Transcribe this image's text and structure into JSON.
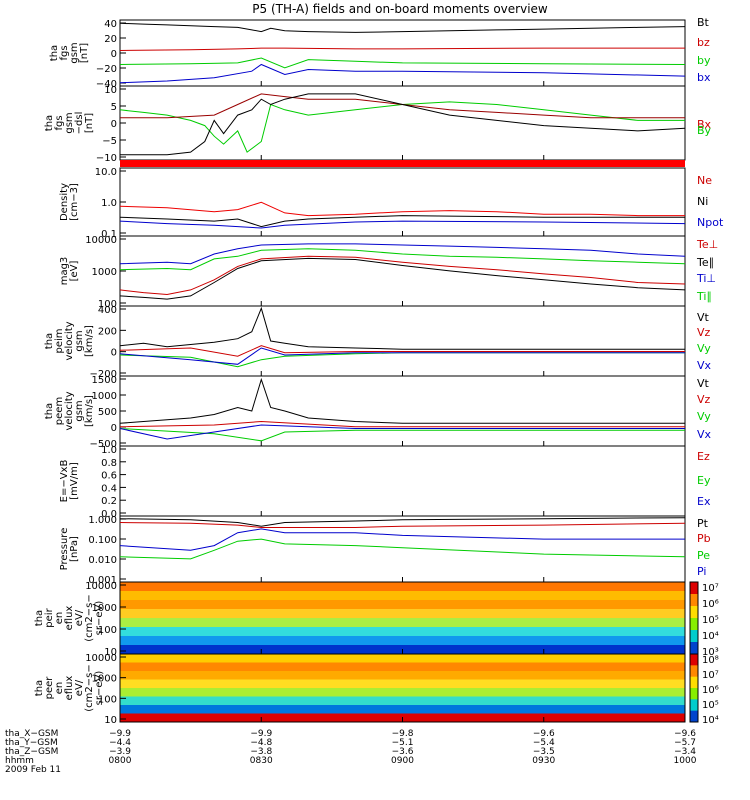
{
  "title": "P5 (TH-A) fields and on-board moments overview",
  "chart_data": [
    {
      "type": "line",
      "panel": "fgs-gsm",
      "ylabel": [
        "tha",
        "fgs",
        "gsm",
        "[nT]"
      ],
      "ylim": [
        -40,
        40
      ],
      "yticks": [
        "40",
        "20",
        "0",
        "−20",
        "−40"
      ],
      "legend": [
        "Bt",
        "bz",
        "by",
        "bx"
      ],
      "legend_colors": [
        "#000000",
        "#cc0000",
        "#00cc00",
        "#0000cc"
      ],
      "series": [
        {
          "name": "Bt",
          "color": "#000000",
          "x": [
            800,
            805,
            810,
            815,
            820,
            825,
            828,
            830,
            832,
            835,
            840,
            850,
            900,
            910,
            920,
            930,
            940,
            950,
            1000
          ],
          "y": [
            36,
            35,
            34,
            33,
            32,
            31,
            28,
            26,
            30,
            27,
            26,
            25,
            26,
            27,
            28,
            29,
            30,
            31,
            32
          ]
        },
        {
          "name": "bz",
          "color": "#cc0000",
          "x": [
            800,
            815,
            825,
            830,
            835,
            850,
            900,
            930,
            1000
          ],
          "y": [
            3,
            4,
            5,
            6,
            6,
            5,
            5,
            6,
            6
          ]
        },
        {
          "name": "by",
          "color": "#00cc00",
          "x": [
            800,
            815,
            825,
            830,
            835,
            840,
            850,
            900,
            930,
            1000
          ],
          "y": [
            -14,
            -13,
            -12,
            -6,
            -18,
            -8,
            -10,
            -12,
            -13,
            -14
          ]
        },
        {
          "name": "bx",
          "color": "#0000cc",
          "x": [
            800,
            810,
            820,
            828,
            830,
            835,
            840,
            850,
            900,
            930,
            1000
          ],
          "y": [
            -36,
            -34,
            -30,
            -22,
            -14,
            -26,
            -20,
            -22,
            -22,
            -24,
            -28
          ]
        }
      ]
    },
    {
      "type": "line",
      "panel": "fgs-gse-dsl",
      "ylabel": [
        "tha",
        "fgs",
        "gsm",
        "−dsl",
        "[nT]"
      ],
      "ylim": [
        -13,
        15
      ],
      "yticks": [
        "10",
        "5",
        "0",
        "−5",
        "−10"
      ],
      "legend": [
        "Bx",
        "By"
      ],
      "legend_colors": [
        "#cc0000",
        "#00cc00"
      ],
      "series": [
        {
          "name": "green",
          "color": "#00cc00",
          "x": [
            800,
            805,
            810,
            815,
            818,
            820,
            822,
            825,
            827,
            830,
            832,
            835,
            840,
            850,
            900,
            910,
            920,
            930,
            940,
            950,
            1000
          ],
          "y": [
            6,
            5,
            4,
            2,
            0,
            -4,
            -7,
            -2,
            -10,
            -6,
            8,
            6,
            4,
            6,
            8,
            9,
            8,
            6,
            4,
            2,
            2
          ]
        },
        {
          "name": "red",
          "color": "#990000",
          "x": [
            800,
            810,
            820,
            825,
            830,
            835,
            840,
            850,
            900,
            910,
            920,
            930,
            940,
            950,
            1000
          ],
          "y": [
            3,
            3,
            4,
            8,
            12,
            11,
            10,
            10,
            8,
            6,
            5,
            4,
            3,
            3,
            3
          ]
        },
        {
          "name": "black",
          "color": "#000000",
          "x": [
            800,
            805,
            810,
            815,
            818,
            820,
            822,
            825,
            828,
            830,
            832,
            835,
            840,
            850,
            900,
            910,
            920,
            930,
            940,
            950,
            1000
          ],
          "y": [
            -11,
            -11,
            -11,
            -10,
            -6,
            2,
            -3,
            4,
            6,
            10,
            8,
            10,
            12,
            12,
            8,
            4,
            2,
            0,
            -1,
            -2,
            -1
          ]
        }
      ]
    },
    {
      "type": "line",
      "panel": "density",
      "ylabel": [
        "Density",
        "[cm−3]"
      ],
      "ylog": true,
      "ylim": [
        0.1,
        15
      ],
      "yticks": [
        "10.0",
        "1.0",
        "0.1"
      ],
      "legend": [
        "Ne",
        "Ni",
        "Npot"
      ],
      "legend_colors": [
        "#cc0000",
        "#000000",
        "#0000cc"
      ],
      "series": [
        {
          "name": "Ne",
          "color": "#ee0000",
          "x": [
            800,
            810,
            820,
            825,
            830,
            835,
            840,
            850,
            900,
            910,
            920,
            930,
            940,
            950,
            1000
          ],
          "y": [
            0.9,
            0.8,
            0.6,
            0.7,
            1.2,
            0.55,
            0.45,
            0.5,
            0.6,
            0.65,
            0.6,
            0.5,
            0.5,
            0.45,
            0.45
          ]
        },
        {
          "name": "Ni",
          "color": "#000000",
          "x": [
            800,
            810,
            820,
            825,
            830,
            835,
            840,
            850,
            900,
            930,
            1000
          ],
          "y": [
            0.4,
            0.35,
            0.3,
            0.35,
            0.2,
            0.3,
            0.35,
            0.4,
            0.45,
            0.4,
            0.4
          ]
        },
        {
          "name": "Npot",
          "color": "#0000cc",
          "x": [
            800,
            810,
            820,
            830,
            835,
            850,
            900,
            930,
            1000
          ],
          "y": [
            0.3,
            0.25,
            0.22,
            0.18,
            0.22,
            0.28,
            0.3,
            0.28,
            0.25
          ]
        }
      ]
    },
    {
      "type": "line",
      "panel": "temperature",
      "ylabel": [
        "mag3",
        "[eV]"
      ],
      "ylog": true,
      "ylim": [
        100,
        12000
      ],
      "yticks": [
        "10000",
        "1000",
        "100"
      ],
      "legend": [
        "Te⊥",
        "Te∥",
        "Ti⊥",
        "Ti∥"
      ],
      "legend_colors": [
        "#cc0000",
        "#000000",
        "#0000cc",
        "#00cc00"
      ],
      "series": [
        {
          "name": "Ti⊥",
          "color": "#0000cc",
          "x": [
            800,
            810,
            815,
            820,
            825,
            830,
            840,
            850,
            900,
            910,
            920,
            930,
            940,
            950,
            1000
          ],
          "y": [
            1800,
            2000,
            1800,
            3500,
            5000,
            6500,
            7000,
            7000,
            6500,
            6000,
            5500,
            5000,
            4500,
            3500,
            3000
          ]
        },
        {
          "name": "Ti∥",
          "color": "#00cc00",
          "x": [
            800,
            810,
            815,
            820,
            825,
            830,
            840,
            850,
            900,
            910,
            920,
            930,
            940,
            950,
            1000
          ],
          "y": [
            1200,
            1300,
            1200,
            2500,
            3000,
            4500,
            5000,
            4500,
            3500,
            3000,
            2800,
            2500,
            2200,
            2000,
            1800
          ]
        },
        {
          "name": "Te⊥",
          "color": "#cc0000",
          "x": [
            800,
            805,
            810,
            815,
            820,
            825,
            830,
            840,
            850,
            900,
            910,
            920,
            930,
            940,
            950,
            1000
          ],
          "y": [
            300,
            250,
            220,
            300,
            600,
            1500,
            2500,
            3000,
            2800,
            2000,
            1500,
            1200,
            900,
            700,
            500,
            450
          ]
        },
        {
          "name": "Te∥",
          "color": "#000000",
          "x": [
            800,
            805,
            810,
            815,
            820,
            825,
            830,
            840,
            850,
            900,
            910,
            920,
            930,
            940,
            950,
            1000
          ],
          "y": [
            200,
            180,
            160,
            200,
            500,
            1300,
            2200,
            2600,
            2400,
            1600,
            1100,
            800,
            600,
            450,
            350,
            300
          ]
        }
      ]
    },
    {
      "type": "line",
      "panel": "peim-velocity",
      "ylabel": [
        "tha",
        "peim",
        "velocity",
        "gsm",
        "[km/s]"
      ],
      "ylim": [
        -200,
        400
      ],
      "yticks": [
        "400",
        "200",
        "0",
        "−200"
      ],
      "legend": [
        "Vt",
        "Vz",
        "Vy",
        "Vx"
      ],
      "legend_colors": [
        "#000000",
        "#cc0000",
        "#00cc00",
        "#0000cc"
      ],
      "series": [
        {
          "name": "Vt",
          "color": "#000000",
          "x": [
            800,
            805,
            810,
            815,
            820,
            825,
            828,
            830,
            832,
            835,
            840,
            850,
            900,
            930,
            1000
          ],
          "y": [
            60,
            80,
            50,
            70,
            90,
            120,
            180,
            380,
            100,
            80,
            50,
            40,
            30,
            30,
            30
          ]
        },
        {
          "name": "Vz",
          "color": "#cc0000",
          "x": [
            800,
            815,
            825,
            830,
            835,
            850,
            900,
            1000
          ],
          "y": [
            20,
            40,
            -30,
            60,
            0,
            10,
            10,
            10
          ]
        },
        {
          "name": "Vy",
          "color": "#00cc00",
          "x": [
            800,
            815,
            825,
            830,
            835,
            850,
            900,
            1000
          ],
          "y": [
            -20,
            -40,
            -120,
            -60,
            -30,
            -10,
            0,
            0
          ]
        },
        {
          "name": "Vx",
          "color": "#0000cc",
          "x": [
            800,
            815,
            825,
            830,
            835,
            850,
            900,
            1000
          ],
          "y": [
            -10,
            -60,
            -100,
            40,
            -20,
            0,
            0,
            0
          ]
        }
      ]
    },
    {
      "type": "line",
      "panel": "peem-velocity",
      "ylabel": [
        "tha",
        "peem",
        "velocity",
        "gsm",
        "[km/s]"
      ],
      "ylim": [
        -500,
        1500
      ],
      "yticks": [
        "1500",
        "1000",
        "500",
        "0",
        "−500"
      ],
      "legend": [
        "Vt",
        "Vz",
        "Vy",
        "Vx"
      ],
      "legend_colors": [
        "#000000",
        "#cc0000",
        "#00cc00",
        "#0000cc"
      ],
      "series": [
        {
          "name": "Vt",
          "color": "#000000",
          "x": [
            800,
            805,
            810,
            815,
            820,
            825,
            828,
            830,
            832,
            835,
            840,
            850,
            900,
            930,
            1000
          ],
          "y": [
            150,
            200,
            250,
            300,
            400,
            600,
            500,
            1400,
            600,
            500,
            300,
            200,
            150,
            150,
            150
          ]
        },
        {
          "name": "Vz",
          "color": "#cc0000",
          "x": [
            800,
            820,
            830,
            850,
            1000
          ],
          "y": [
            50,
            100,
            200,
            50,
            50
          ]
        },
        {
          "name": "Vy",
          "color": "#00cc00",
          "x": [
            800,
            820,
            830,
            835,
            850,
            1000
          ],
          "y": [
            0,
            -150,
            -350,
            -100,
            -50,
            -50
          ]
        },
        {
          "name": "Vx",
          "color": "#0000cc",
          "x": [
            800,
            810,
            820,
            830,
            850,
            1000
          ],
          "y": [
            0,
            -300,
            -100,
            100,
            0,
            0
          ]
        }
      ]
    },
    {
      "type": "line",
      "panel": "efield",
      "ylabel": [
        "E=−VxB",
        "[mV/m]"
      ],
      "ylim": [
        0,
        1
      ],
      "yticks": [
        "1.0",
        "0.8",
        "0.6",
        "0.4",
        "0.2",
        "0.0"
      ],
      "legend": [
        "Ez",
        "Ey",
        "Ex"
      ],
      "legend_colors": [
        "#cc0000",
        "#00cc00",
        "#0000cc"
      ],
      "series": []
    },
    {
      "type": "line",
      "panel": "pressure",
      "ylabel": [
        "Pressure",
        "[nPa]"
      ],
      "ylog": true,
      "ylim": [
        0.001,
        1.2
      ],
      "yticks": [
        "1.000",
        "0.100",
        "0.010",
        "0.001"
      ],
      "legend": [
        "Pt",
        "Pb",
        "Pe",
        "Pi"
      ],
      "legend_colors": [
        "#000000",
        "#cc0000",
        "#00cc00",
        "#0000cc"
      ],
      "series": [
        {
          "name": "Pt",
          "color": "#000000",
          "x": [
            800,
            815,
            825,
            830,
            835,
            850,
            900,
            930,
            1000
          ],
          "y": [
            0.9,
            0.8,
            0.6,
            0.4,
            0.6,
            0.7,
            0.8,
            0.9,
            1.0
          ]
        },
        {
          "name": "Pb",
          "color": "#cc0000",
          "x": [
            800,
            815,
            825,
            830,
            835,
            850,
            900,
            930,
            1000
          ],
          "y": [
            0.6,
            0.55,
            0.45,
            0.35,
            0.35,
            0.35,
            0.4,
            0.45,
            0.55
          ]
        },
        {
          "name": "Pi",
          "color": "#0000cc",
          "x": [
            800,
            815,
            820,
            825,
            830,
            835,
            850,
            900,
            930,
            1000
          ],
          "y": [
            0.05,
            0.03,
            0.05,
            0.2,
            0.3,
            0.2,
            0.2,
            0.15,
            0.1,
            0.1
          ]
        },
        {
          "name": "Pe",
          "color": "#00cc00",
          "x": [
            800,
            815,
            820,
            825,
            830,
            835,
            850,
            900,
            930,
            1000
          ],
          "y": [
            0.015,
            0.012,
            0.03,
            0.08,
            0.1,
            0.06,
            0.05,
            0.04,
            0.02,
            0.015
          ]
        }
      ]
    },
    {
      "type": "heatmap",
      "panel": "peir-en-eflux",
      "ylabel": [
        "tha",
        "peir",
        "en",
        "eflux",
        "eV/",
        "(cm2−s−",
        "sr−eV)"
      ],
      "ylog": true,
      "ylim": [
        8,
        25000
      ],
      "yticks": [
        "10000",
        "1000",
        "100",
        "10"
      ],
      "colorbar_ticks": [
        "10⁷",
        "10⁶",
        "10⁵",
        "10⁴",
        "10³"
      ]
    },
    {
      "type": "heatmap",
      "panel": "peer-en-eflux",
      "ylabel": [
        "tha",
        "peer",
        "en",
        "eflux",
        "eV/",
        "(cm2−s−",
        "sr−eV)"
      ],
      "ylog": true,
      "ylim": [
        8,
        25000
      ],
      "yticks": [
        "10000",
        "1000",
        "100",
        "10"
      ],
      "colorbar_ticks": [
        "10⁸",
        "10⁷",
        "10⁶",
        "10⁵",
        "10⁴"
      ]
    }
  ],
  "orbit": {
    "labels": [
      "tha_X−GSM",
      "tha_Y−GSM",
      "tha_Z−GSM",
      "hhmm",
      "2009 Feb 11"
    ],
    "columns": [
      [
        "−9.9",
        "−4.4",
        "−3.9",
        "0800"
      ],
      [
        "−9.9",
        "−4.8",
        "−3.8",
        "0830"
      ],
      [
        "−9.8",
        "−5.1",
        "−3.6",
        "0900"
      ],
      [
        "−9.6",
        "−5.4",
        "−3.5",
        "0930"
      ],
      [
        "−9.6",
        "−5.7",
        "−3.4",
        "1000"
      ]
    ]
  }
}
